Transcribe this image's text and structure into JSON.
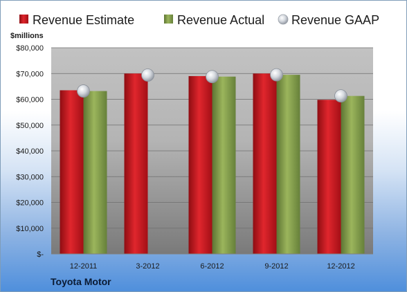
{
  "chart_data": {
    "type": "bar",
    "categories": [
      "12-2011",
      "3-2012",
      "6-2012",
      "9-2012",
      "12-2012"
    ],
    "series": [
      {
        "name": "Revenue Estimate",
        "values": [
          63500,
          70000,
          69000,
          70000,
          59800
        ]
      },
      {
        "name": "Revenue Actual",
        "values": [
          63200,
          null,
          68800,
          69500,
          61300
        ]
      }
    ],
    "overlay": {
      "name": "Revenue GAAP",
      "type": "scatter",
      "values": [
        63200,
        69400,
        68800,
        69500,
        61300
      ]
    },
    "units_label": "$millions",
    "y_ticks": [
      "$-",
      "$10,000",
      "$20,000",
      "$30,000",
      "$40,000",
      "$50,000",
      "$60,000",
      "$70,000",
      "$80,000"
    ],
    "ylim": [
      0,
      80000
    ],
    "legend_position": "top",
    "grid": true,
    "footer_label": "Toyota Motor"
  },
  "colors": {
    "estimate": "#c8141c",
    "actual": "#7f9a48",
    "gaap": "#c8ccd4"
  }
}
